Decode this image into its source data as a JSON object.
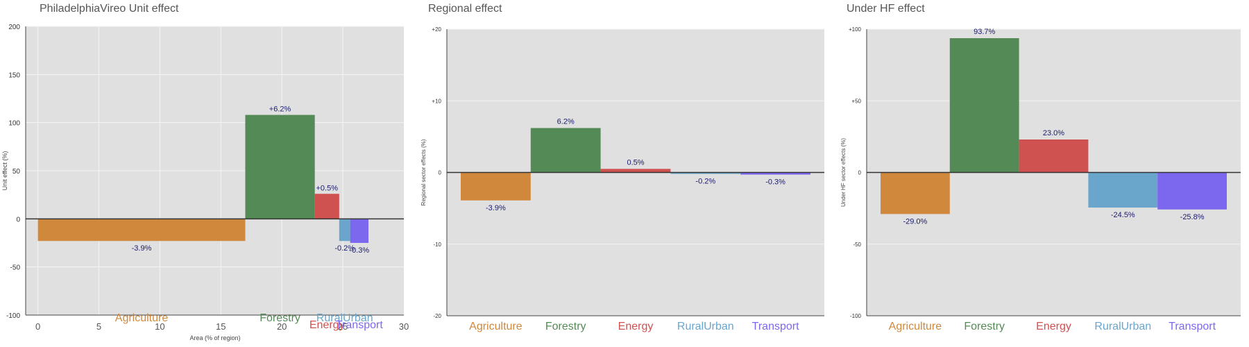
{
  "colors": {
    "Agriculture": "#d0883d",
    "Forestry": "#548a55",
    "Energy": "#cf5150",
    "RuralUrban": "#6aa6cc",
    "Transport": "#7b68ee",
    "panel_bg": "#e0e0e0",
    "label_text": "#1a1a6e"
  },
  "chart_data": [
    {
      "type": "bar",
      "title": "PhiladelphiaVireo Unit effect",
      "xlabel": "Area (% of region)",
      "ylabel": "Unit effect (%)",
      "xlim": [
        -1,
        30
      ],
      "ylim": [
        -100,
        200
      ],
      "xticks": [
        "0",
        "5",
        "10",
        "15",
        "20",
        "25",
        "30"
      ],
      "xtick_values": [
        0,
        5,
        10,
        15,
        20,
        25,
        30
      ],
      "yticks": [
        "200",
        "150",
        "100",
        "50",
        "0",
        "-50",
        "-100"
      ],
      "ytick_values": [
        200,
        150,
        100,
        50,
        0,
        -50,
        -100
      ],
      "categories": [
        "Agriculture",
        "Forestry",
        "Energy",
        "RuralUrban",
        "Transport"
      ],
      "bars": [
        {
          "category": "Agriculture",
          "x_start": 0,
          "x_end": 17,
          "value": -23,
          "label": "-3.9%"
        },
        {
          "category": "Forestry",
          "x_start": 17,
          "x_end": 22.7,
          "value": 108,
          "label": "+6.2%"
        },
        {
          "category": "Energy",
          "x_start": 22.7,
          "x_end": 24.7,
          "value": 26,
          "label": "+0.5%"
        },
        {
          "category": "RuralUrban",
          "x_start": 24.7,
          "x_end": 25.6,
          "value": -23,
          "label": "-0.2%"
        },
        {
          "category": "Transport",
          "x_start": 25.6,
          "x_end": 27.1,
          "value": -25,
          "label": "-0.3%"
        }
      ],
      "category_labels": [
        {
          "category": "Agriculture",
          "x": 8.5
        },
        {
          "category": "Forestry",
          "x": 19.85
        },
        {
          "category": "Energy",
          "x": 23.7,
          "lower": true
        },
        {
          "category": "RuralUrban",
          "x": 25.15
        },
        {
          "category": "Transport",
          "x": 26.35,
          "lower": true
        }
      ]
    },
    {
      "type": "bar",
      "title": "Regional effect",
      "xlabel": "",
      "ylabel": "Regional sector effects (%)",
      "ylim": [
        -20,
        20
      ],
      "yticks": [
        "+20",
        "+10",
        "0",
        "-10",
        "-20"
      ],
      "ytick_values": [
        20,
        10,
        0,
        -10,
        -20
      ],
      "categories": [
        "Agriculture",
        "Forestry",
        "Energy",
        "RuralUrban",
        "Transport"
      ],
      "values": [
        -3.9,
        6.2,
        0.5,
        -0.2,
        -0.3
      ],
      "labels": [
        "-3.9%",
        "6.2%",
        "0.5%",
        "-0.2%",
        "-0.3%"
      ]
    },
    {
      "type": "bar",
      "title": "Under HF effect",
      "xlabel": "",
      "ylabel": "Under HF sector effects (%)",
      "ylim": [
        -100,
        100
      ],
      "yticks": [
        "+100",
        "+50",
        "0",
        "-50",
        "-100"
      ],
      "ytick_values": [
        100,
        50,
        0,
        -50,
        -100
      ],
      "categories": [
        "Agriculture",
        "Forestry",
        "Energy",
        "RuralUrban",
        "Transport"
      ],
      "values": [
        -29.0,
        93.7,
        23.0,
        -24.5,
        -25.8
      ],
      "labels": [
        "-29.0%",
        "93.7%",
        "23.0%",
        "-24.5%",
        "-25.8%"
      ]
    }
  ]
}
